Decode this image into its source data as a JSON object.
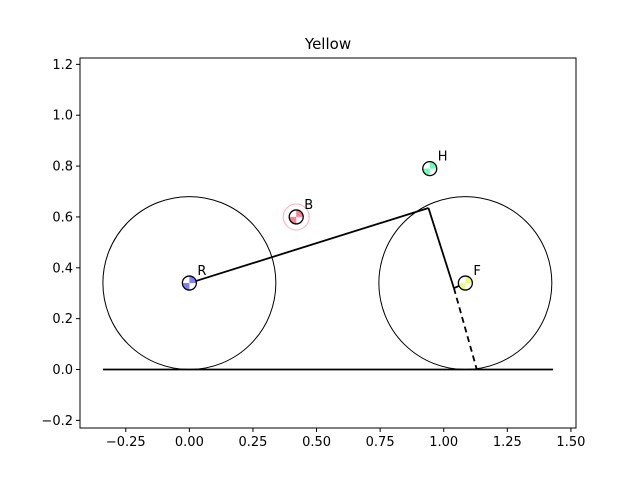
{
  "chart_data": {
    "type": "scatter",
    "title": "Yellow",
    "xlabel": "",
    "ylabel": "",
    "xlim": [
      -0.43,
      1.52
    ],
    "ylim": [
      -0.23,
      1.225
    ],
    "grid": false,
    "x_ticks": [
      -0.25,
      0.0,
      0.25,
      0.5,
      0.75,
      1.0,
      1.25,
      1.5
    ],
    "x_tick_labels": [
      "−0.25",
      "0.00",
      "0.25",
      "0.50",
      "0.75",
      "1.00",
      "1.25",
      "1.50"
    ],
    "y_ticks": [
      -0.2,
      0.0,
      0.2,
      0.4,
      0.6,
      0.8,
      1.0,
      1.2
    ],
    "y_tick_labels": [
      "−0.2",
      "0.0",
      "0.2",
      "0.4",
      "0.6",
      "0.8",
      "1.0",
      "1.2"
    ],
    "wheels": [
      {
        "name": "rear-wheel",
        "cx": 0.0,
        "cy": 0.34,
        "r": 0.34
      },
      {
        "name": "front-wheel",
        "cx": 1.085,
        "cy": 0.34,
        "r": 0.34
      }
    ],
    "ground": {
      "x": [
        -0.34,
        1.43
      ],
      "y": 0.0
    },
    "frame": [
      {
        "name": "frame-rear-to-head",
        "x": [
          0.0,
          0.94
        ],
        "y": [
          0.34,
          0.635
        ],
        "dashed": false
      },
      {
        "name": "frame-fork",
        "x": [
          0.94,
          1.04
        ],
        "y": [
          0.635,
          0.32
        ],
        "dashed": false
      },
      {
        "name": "frame-fork-to-f",
        "x": [
          1.04,
          1.085
        ],
        "y": [
          0.32,
          0.34
        ],
        "dashed": false
      },
      {
        "name": "frame-fork-extension",
        "x": [
          1.04,
          1.13
        ],
        "y": [
          0.32,
          0.0
        ],
        "dashed": true
      }
    ],
    "points": [
      {
        "label": "R",
        "x": 0.0,
        "y": 0.34,
        "color": "#8080ff",
        "halo": false
      },
      {
        "label": "B",
        "x": 0.42,
        "y": 0.6,
        "color": "#ff7f90",
        "halo": true
      },
      {
        "label": "H",
        "x": 0.945,
        "y": 0.79,
        "color": "#66ffb3",
        "halo": false
      },
      {
        "label": "F",
        "x": 1.085,
        "y": 0.34,
        "color": "#e8ff80",
        "halo": false
      }
    ]
  }
}
